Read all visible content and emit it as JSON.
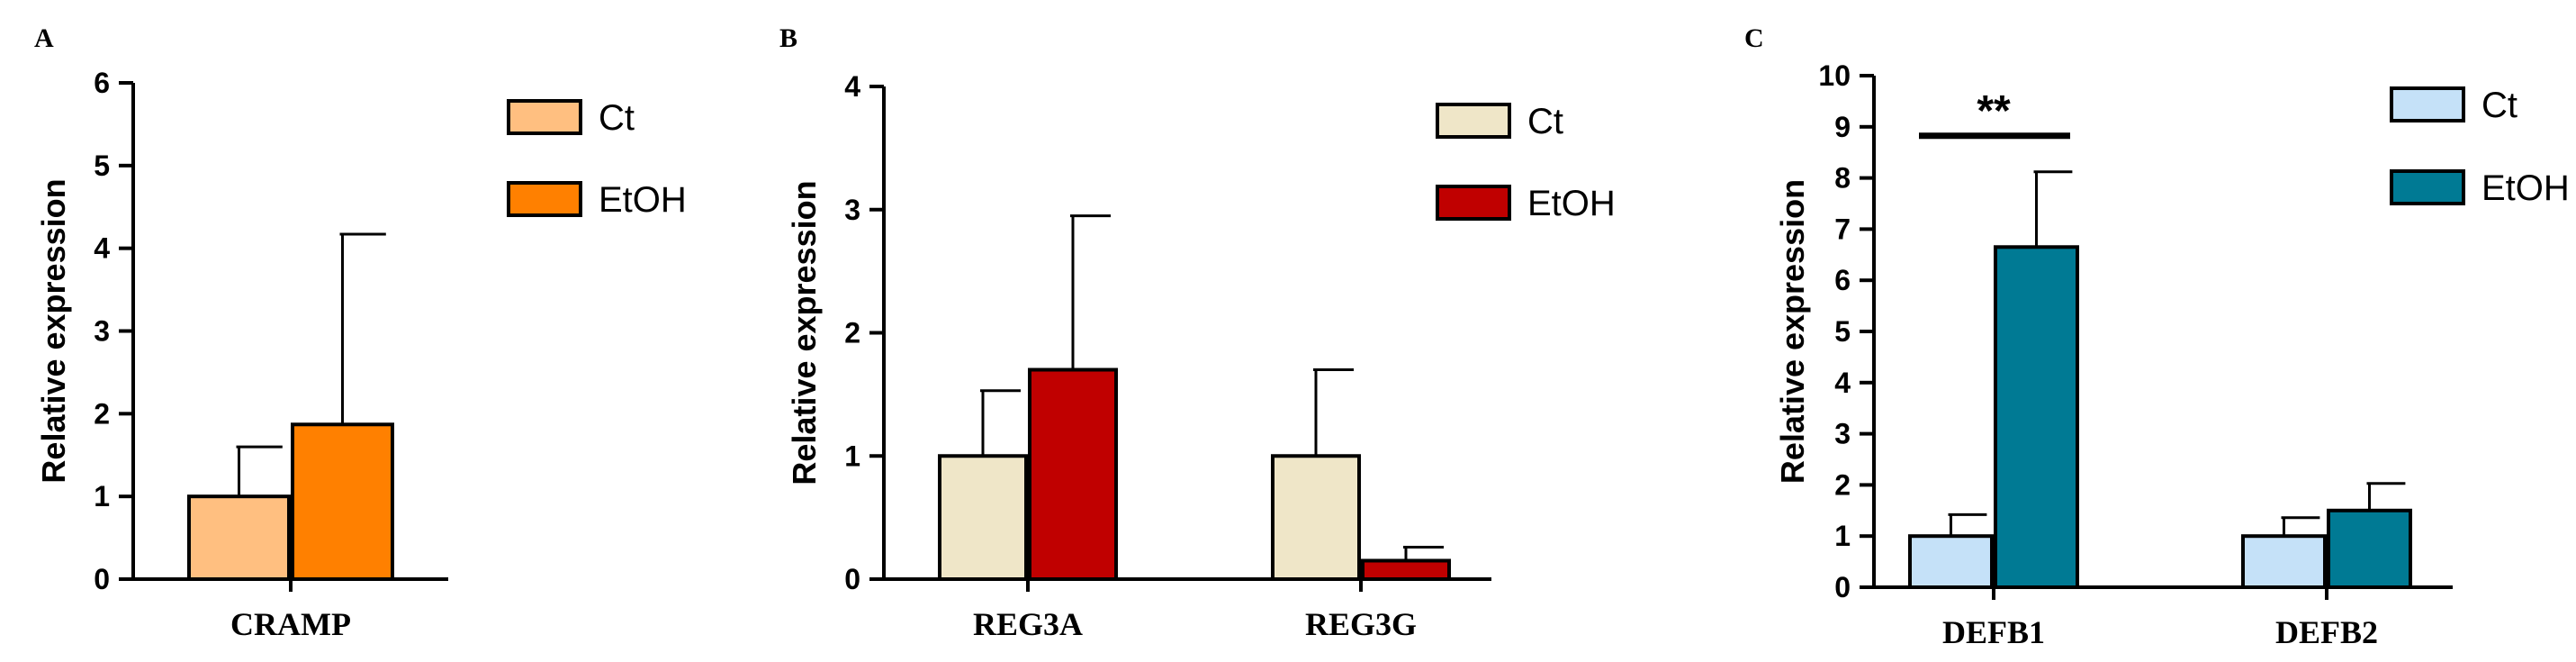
{
  "chart_data": [
    {
      "type": "bar",
      "panel": "A",
      "title": "",
      "xlabel": "",
      "ylabel": "Relative expression",
      "ylim": [
        0,
        6
      ],
      "yticks": [
        0,
        1,
        2,
        3,
        4,
        5,
        6
      ],
      "categories": [
        "CRAMP"
      ],
      "series": [
        {
          "name": "Ct",
          "color": "#FFBF80",
          "values": [
            1.0
          ],
          "errors": [
            0.6
          ]
        },
        {
          "name": "EtOH",
          "color": "#FF8000",
          "values": [
            1.87
          ],
          "errors": [
            2.3
          ]
        }
      ],
      "legend": "top-right",
      "grid": false,
      "annotations": []
    },
    {
      "type": "bar",
      "panel": "B",
      "title": "",
      "xlabel": "",
      "ylabel": "Relative expression",
      "ylim": [
        0,
        4
      ],
      "yticks": [
        0,
        1,
        2,
        3,
        4
      ],
      "categories": [
        "REG3A",
        "REG3G"
      ],
      "series": [
        {
          "name": "Ct",
          "color": "#EFE6C8",
          "values": [
            1.0,
            1.0
          ],
          "errors": [
            0.53,
            0.7
          ]
        },
        {
          "name": "EtOH",
          "color": "#C00000",
          "values": [
            1.7,
            0.15
          ],
          "errors": [
            1.25,
            0.11
          ]
        }
      ],
      "legend": "top-right",
      "grid": false,
      "annotations": []
    },
    {
      "type": "bar",
      "panel": "C",
      "title": "",
      "xlabel": "",
      "ylabel": "Relative expression",
      "ylim": [
        0,
        10
      ],
      "yticks": [
        0,
        1,
        2,
        3,
        4,
        5,
        6,
        7,
        8,
        9,
        10
      ],
      "categories": [
        "DEFB1",
        "DEFB2"
      ],
      "series": [
        {
          "name": "Ct",
          "color": "#C5E1F8",
          "values": [
            1.0,
            1.0
          ],
          "errors": [
            0.42,
            0.36
          ]
        },
        {
          "name": "EtOH",
          "color": "#007A94",
          "values": [
            6.65,
            1.5
          ],
          "errors": [
            1.47,
            0.53
          ]
        }
      ],
      "legend": "top-right",
      "grid": false,
      "annotations": [
        {
          "text": "**",
          "category": "DEFB1"
        }
      ]
    }
  ]
}
